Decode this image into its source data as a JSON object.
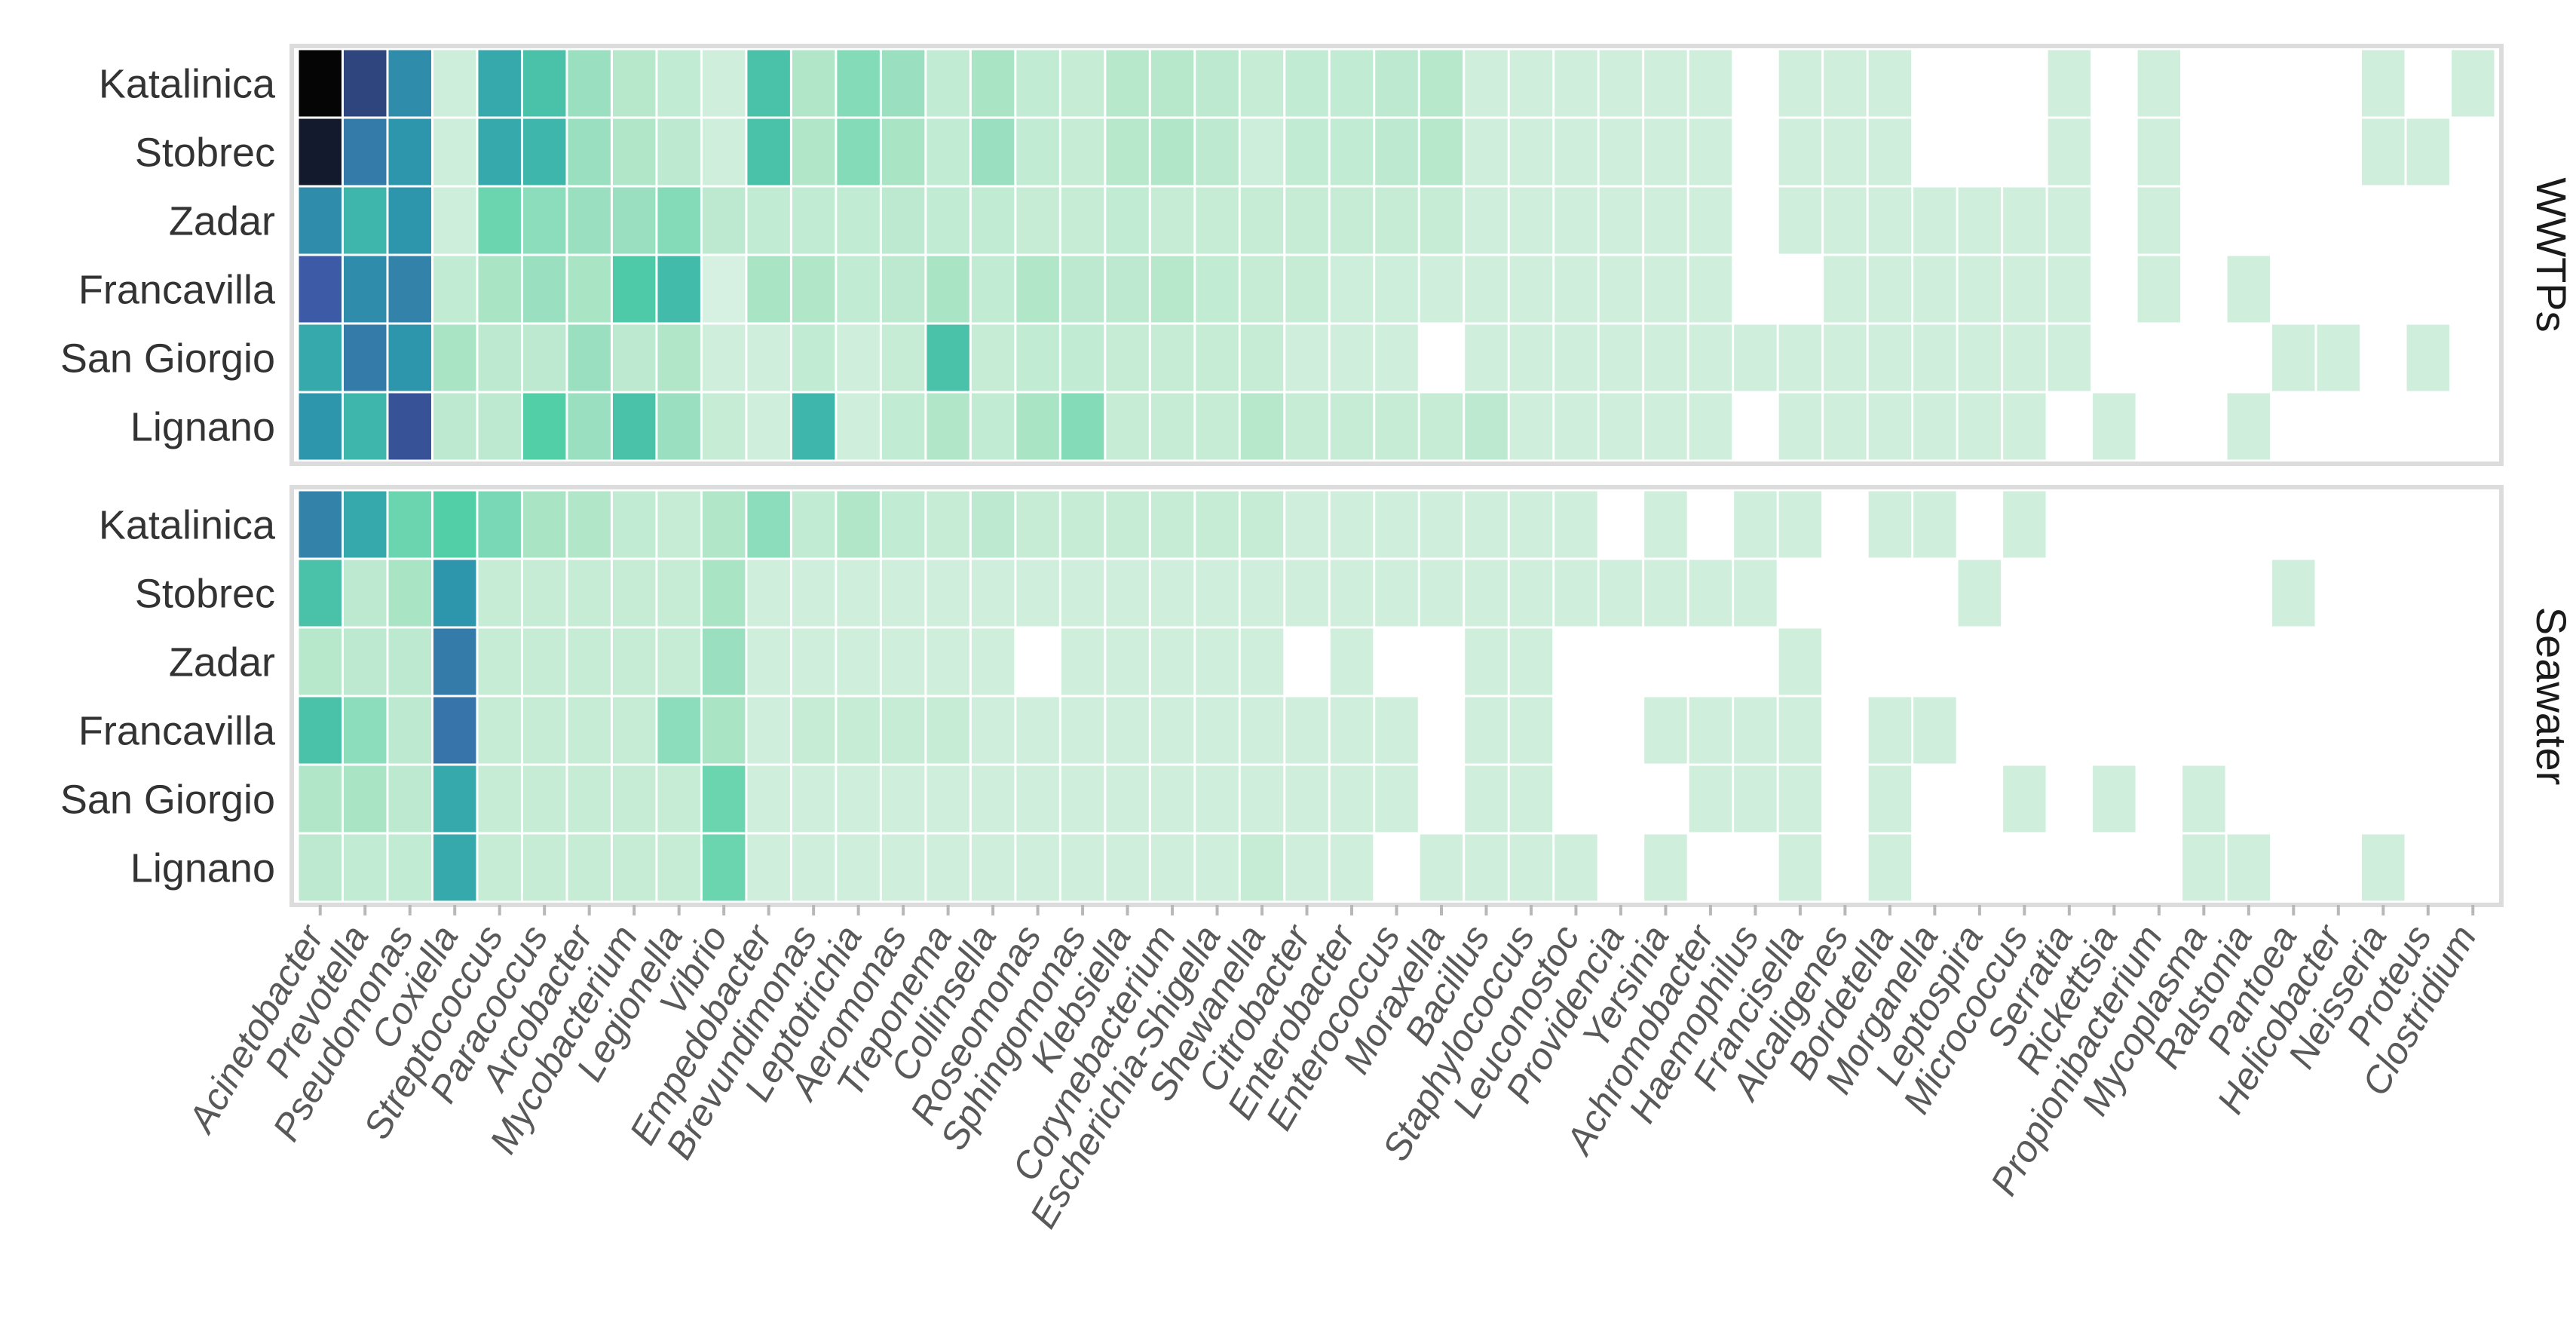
{
  "chart_data": {
    "type": "heatmap",
    "title": "",
    "xlabel": "",
    "ylabel": "",
    "legend": "none",
    "grid": false,
    "colors": {
      "zero": "#ffffff",
      "scale": [
        "#e6f5ec",
        "#b2e6c8",
        "#53cfa8",
        "#2b9cad",
        "#3d5aa6",
        "#050505"
      ],
      "panel_border": "#dcdcdc",
      "strip_bg": "#ffffff",
      "tick_color": "#b8b8b8",
      "text_color": "#333333",
      "genus_text_color": "#595959"
    },
    "genera": [
      "Acinetobacter",
      "Prevotella",
      "Pseudomonas",
      "Coxiella",
      "Streptococcus",
      "Paracoccus",
      "Arcobacter",
      "Mycobacterium",
      "Legionella",
      "Vibrio",
      "Empedobacter",
      "Brevundimonas",
      "Leptotrichia",
      "Aeromonas",
      "Treponema",
      "Collinsella",
      "Roseomonas",
      "Sphingomonas",
      "Klebsiella",
      "Corynebacterium",
      "Escherichia-Shigella",
      "Shewanella",
      "Citrobacter",
      "Enterobacter",
      "Enterococcus",
      "Moraxella",
      "Bacillus",
      "Staphylococcus",
      "Leuconostoc",
      "Providencia",
      "Yersinia",
      "Achromobacter",
      "Haemophilus",
      "Francisella",
      "Alcaligenes",
      "Bordetella",
      "Morganella",
      "Leptospira",
      "Micrococcus",
      "Serratia",
      "Rickettsia",
      "Propionibacterium",
      "Mycoplasma",
      "Ralstonia",
      "Pantoea",
      "Helicobacter",
      "Neisseria",
      "Proteus",
      "Clostridium"
    ],
    "panels": [
      {
        "label": "WWTPs",
        "rows": [
          {
            "site": "Katalinica",
            "values": [
              1.0,
              0.85,
              0.65,
              0.1,
              0.55,
              0.45,
              0.25,
              0.18,
              0.14,
              0.09,
              0.45,
              0.2,
              0.3,
              0.25,
              0.14,
              0.22,
              0.14,
              0.12,
              0.18,
              0.18,
              0.16,
              0.12,
              0.14,
              0.14,
              0.16,
              0.18,
              0.09,
              0.09,
              0.09,
              0.09,
              0.09,
              0.09,
              0,
              0.09,
              0.09,
              0.09,
              0,
              0,
              0,
              0.09,
              0,
              0.09,
              0,
              0,
              0,
              0,
              0.09,
              0,
              0.09
            ]
          },
          {
            "site": "Stobrec",
            "values": [
              0.95,
              0.7,
              0.62,
              0.1,
              0.55,
              0.5,
              0.25,
              0.2,
              0.16,
              0.09,
              0.45,
              0.2,
              0.3,
              0.22,
              0.14,
              0.25,
              0.14,
              0.12,
              0.18,
              0.2,
              0.16,
              0.1,
              0.14,
              0.14,
              0.16,
              0.18,
              0.09,
              0.09,
              0.09,
              0.09,
              0.09,
              0.09,
              0,
              0.09,
              0.09,
              0.09,
              0,
              0,
              0,
              0.09,
              0,
              0.09,
              0,
              0,
              0,
              0,
              0.09,
              0.09,
              0
            ]
          },
          {
            "site": "Zadar",
            "values": [
              0.65,
              0.5,
              0.62,
              0.1,
              0.35,
              0.28,
              0.25,
              0.25,
              0.3,
              0.16,
              0.14,
              0.14,
              0.14,
              0.16,
              0.14,
              0.14,
              0.12,
              0.12,
              0.14,
              0.12,
              0.12,
              0.12,
              0.12,
              0.12,
              0.12,
              0.12,
              0.09,
              0.09,
              0.09,
              0.09,
              0.09,
              0.09,
              0,
              0.09,
              0.09,
              0.09,
              0.09,
              0.09,
              0.09,
              0.09,
              0,
              0.09,
              0,
              0,
              0,
              0,
              0,
              0,
              0
            ]
          },
          {
            "site": "Francavilla",
            "values": [
              0.8,
              0.65,
              0.68,
              0.14,
              0.22,
              0.25,
              0.22,
              0.42,
              0.48,
              0.06,
              0.22,
              0.2,
              0.14,
              0.16,
              0.22,
              0.14,
              0.2,
              0.16,
              0.16,
              0.18,
              0.14,
              0.12,
              0.12,
              0.1,
              0.1,
              0.09,
              0.09,
              0.09,
              0.09,
              0.09,
              0.09,
              0.09,
              0,
              0,
              0.09,
              0.09,
              0.09,
              0.09,
              0.09,
              0.09,
              0,
              0.09,
              0,
              0.09,
              0,
              0,
              0,
              0,
              0
            ]
          },
          {
            "site": "San Giorgio",
            "values": [
              0.55,
              0.7,
              0.62,
              0.22,
              0.16,
              0.16,
              0.25,
              0.16,
              0.2,
              0.09,
              0.09,
              0.14,
              0.09,
              0.12,
              0.45,
              0.12,
              0.14,
              0.14,
              0.12,
              0.12,
              0.12,
              0.12,
              0.09,
              0.09,
              0.09,
              0,
              0.09,
              0.09,
              0.09,
              0.09,
              0.09,
              0.09,
              0.09,
              0.09,
              0.09,
              0.09,
              0.09,
              0.09,
              0.09,
              0.09,
              0,
              0,
              0,
              0,
              0.09,
              0.09,
              0,
              0.09,
              0
            ]
          },
          {
            "site": "Lignano",
            "values": [
              0.62,
              0.5,
              0.82,
              0.16,
              0.16,
              0.4,
              0.25,
              0.45,
              0.25,
              0.12,
              0.09,
              0.5,
              0.09,
              0.14,
              0.2,
              0.14,
              0.22,
              0.3,
              0.12,
              0.12,
              0.12,
              0.18,
              0.12,
              0.12,
              0.12,
              0.12,
              0.16,
              0.09,
              0.09,
              0.09,
              0.09,
              0.09,
              0,
              0.09,
              0.09,
              0.09,
              0.09,
              0.09,
              0.09,
              0,
              0.09,
              0,
              0,
              0.09,
              0,
              0,
              0,
              0,
              0
            ]
          }
        ]
      },
      {
        "label": "Seawater",
        "rows": [
          {
            "site": "Katalinica",
            "values": [
              0.68,
              0.55,
              0.35,
              0.4,
              0.32,
              0.22,
              0.2,
              0.14,
              0.12,
              0.2,
              0.28,
              0.14,
              0.2,
              0.14,
              0.12,
              0.16,
              0.12,
              0.12,
              0.12,
              0.12,
              0.12,
              0.12,
              0.09,
              0.09,
              0.09,
              0.09,
              0.09,
              0.09,
              0.09,
              0,
              0.09,
              0,
              0.09,
              0.09,
              0,
              0.09,
              0.09,
              0,
              0.09,
              0,
              0,
              0,
              0,
              0,
              0,
              0,
              0,
              0,
              0
            ]
          },
          {
            "site": "Stobrec",
            "values": [
              0.45,
              0.16,
              0.22,
              0.62,
              0.12,
              0.12,
              0.12,
              0.12,
              0.12,
              0.22,
              0.09,
              0.09,
              0.09,
              0.09,
              0.09,
              0.09,
              0.09,
              0.09,
              0.09,
              0.09,
              0.09,
              0.09,
              0.09,
              0.09,
              0.09,
              0.09,
              0.09,
              0.09,
              0.09,
              0.09,
              0.09,
              0.09,
              0.09,
              0,
              0,
              0,
              0,
              0.09,
              0,
              0,
              0,
              0,
              0,
              0,
              0.09,
              0,
              0,
              0,
              0
            ]
          },
          {
            "site": "Zadar",
            "values": [
              0.18,
              0.16,
              0.16,
              0.7,
              0.12,
              0.12,
              0.12,
              0.12,
              0.12,
              0.25,
              0.09,
              0.09,
              0.09,
              0.09,
              0.09,
              0.09,
              0,
              0.09,
              0.09,
              0.09,
              0.09,
              0.09,
              0,
              0.09,
              0,
              0,
              0.09,
              0.09,
              0,
              0,
              0,
              0,
              0,
              0.09,
              0,
              0,
              0,
              0,
              0,
              0,
              0,
              0,
              0,
              0,
              0,
              0,
              0,
              0,
              0
            ]
          },
          {
            "site": "Francavilla",
            "values": [
              0.45,
              0.28,
              0.16,
              0.72,
              0.12,
              0.12,
              0.12,
              0.12,
              0.28,
              0.22,
              0.09,
              0.12,
              0.12,
              0.12,
              0.12,
              0.09,
              0.09,
              0.09,
              0.09,
              0.09,
              0.09,
              0.09,
              0.09,
              0.09,
              0.09,
              0,
              0.09,
              0.09,
              0,
              0,
              0.09,
              0.09,
              0.09,
              0.09,
              0,
              0.09,
              0.09,
              0,
              0,
              0,
              0,
              0,
              0,
              0,
              0,
              0,
              0,
              0,
              0
            ]
          },
          {
            "site": "San Giorgio",
            "values": [
              0.2,
              0.22,
              0.16,
              0.55,
              0.12,
              0.12,
              0.12,
              0.12,
              0.12,
              0.35,
              0.09,
              0.09,
              0.09,
              0.09,
              0.09,
              0.09,
              0.09,
              0.09,
              0.09,
              0.09,
              0.09,
              0.09,
              0.09,
              0.09,
              0.09,
              0,
              0.09,
              0.09,
              0,
              0,
              0,
              0.09,
              0.09,
              0.09,
              0,
              0.09,
              0,
              0,
              0.09,
              0,
              0.09,
              0,
              0.09,
              0,
              0,
              0,
              0,
              0,
              0
            ]
          },
          {
            "site": "Lignano",
            "values": [
              0.16,
              0.14,
              0.14,
              0.55,
              0.12,
              0.12,
              0.12,
              0.12,
              0.12,
              0.35,
              0.09,
              0.09,
              0.09,
              0.09,
              0.09,
              0.09,
              0.09,
              0.09,
              0.09,
              0.09,
              0.09,
              0.12,
              0.09,
              0.09,
              0,
              0.09,
              0.09,
              0.09,
              0.09,
              0,
              0.09,
              0,
              0,
              0.09,
              0,
              0.09,
              0,
              0,
              0,
              0,
              0,
              0,
              0.09,
              0.09,
              0,
              0,
              0.09,
              0,
              0
            ]
          }
        ]
      }
    ]
  }
}
